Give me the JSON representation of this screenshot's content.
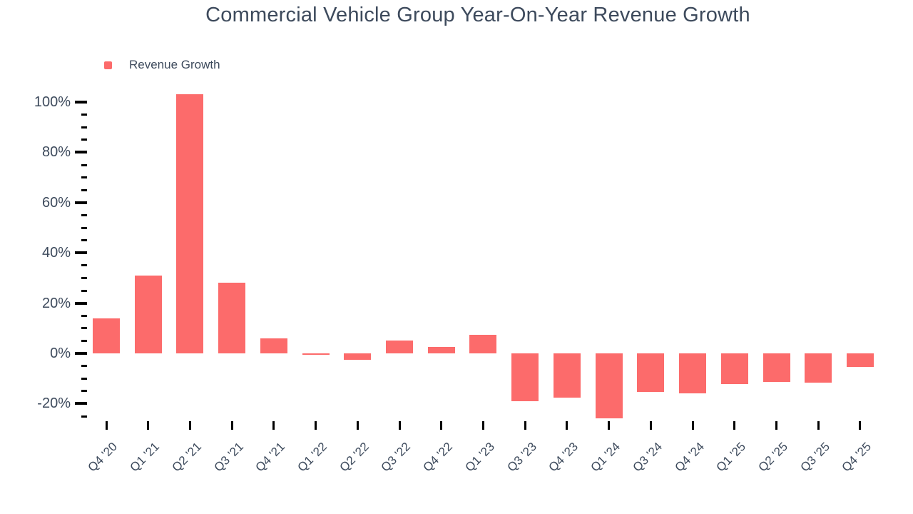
{
  "header": {
    "title": "Commercial Vehicle Group Year-On-Year Revenue Growth"
  },
  "legend": {
    "label": "Revenue Growth"
  },
  "colors": {
    "bar": "#fc6b6b",
    "text": "#3d4a5c",
    "tick": "#000000",
    "background": "#ffffff"
  },
  "chart_data": {
    "type": "bar",
    "title": "Commercial Vehicle Group Year-On-Year Revenue Growth",
    "xlabel": "",
    "ylabel": "",
    "grid": false,
    "legend_position": "top-left",
    "legend_entries": [
      "Revenue Growth"
    ],
    "y_tick_format": "{value}%",
    "y_major_tick_step": 20,
    "y_minor_tick_step": 5,
    "y_major_tick_labels": [
      "-20%",
      "0%",
      "20%",
      "40%",
      "60%",
      "80%",
      "100%"
    ],
    "ylim": [
      -27,
      104
    ],
    "categories": [
      "Q4 '20",
      "Q1 '21",
      "Q2 '21",
      "Q3 '21",
      "Q4 '21",
      "Q1 '22",
      "Q2 '22",
      "Q3 '22",
      "Q4 '22",
      "Q1 '23",
      "Q3 '23",
      "Q4 '23",
      "Q1 '24",
      "Q3 '24",
      "Q4 '24",
      "Q1 '25",
      "Q2 '25",
      "Q3 '25",
      "Q4 '25"
    ],
    "series": [
      {
        "name": "Revenue Growth",
        "unit": "%",
        "values": [
          14,
          31,
          103,
          28,
          6,
          -0.5,
          -2.6,
          5,
          2.5,
          7.5,
          -19,
          -17.7,
          -25.8,
          -15.2,
          -16,
          -12.2,
          -11.5,
          -11.6,
          -5.4
        ]
      }
    ]
  }
}
